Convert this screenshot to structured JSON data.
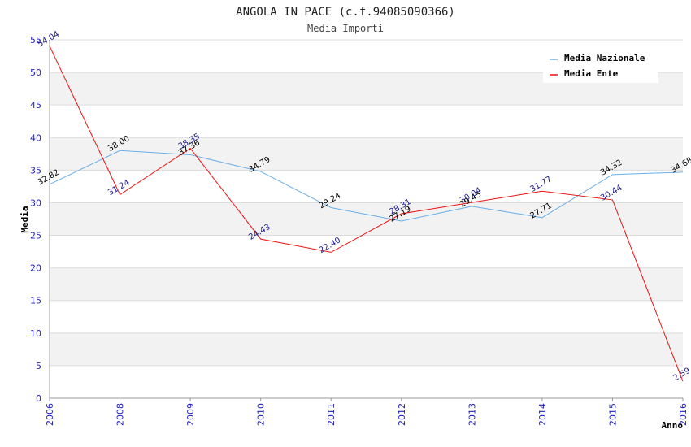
{
  "chart_data": {
    "type": "line",
    "title": "ANGOLA IN PACE (c.f.94085090366)",
    "subtitle": "Media Importi",
    "ylabel": "Media",
    "xlabel": "Anno",
    "categories": [
      "2006",
      "2008",
      "2009",
      "2010",
      "2011",
      "2012",
      "2013",
      "2014",
      "2015",
      "2016"
    ],
    "ylim": [
      0,
      55
    ],
    "yticks": [
      "0",
      "5",
      "10",
      "15",
      "20",
      "25",
      "30",
      "35",
      "40",
      "45",
      "50",
      "55"
    ],
    "grid": true,
    "legend_position": "top-right",
    "series": [
      {
        "name": "Media Nazionale",
        "color": "#6aaee8",
        "label_color": "#000000",
        "values": [
          32.82,
          38.0,
          37.36,
          34.79,
          29.24,
          27.19,
          29.45,
          27.71,
          34.32,
          34.68
        ],
        "labels": [
          "32.82",
          "38.00",
          "37.36",
          "34.79",
          "29.24",
          "27.19",
          "29.45",
          "27.71",
          "34.32",
          "34.68"
        ]
      },
      {
        "name": "Media Ente",
        "color": "#ee1111",
        "label_color": "#1a1a8c",
        "values": [
          54.04,
          31.24,
          38.35,
          24.43,
          22.4,
          28.31,
          30.04,
          31.77,
          30.44,
          2.59
        ],
        "labels": [
          "54.04",
          "31.24",
          "38.35",
          "24.43",
          "22.40",
          "28.31",
          "30.04",
          "31.77",
          "30.44",
          "2.59"
        ]
      }
    ]
  }
}
